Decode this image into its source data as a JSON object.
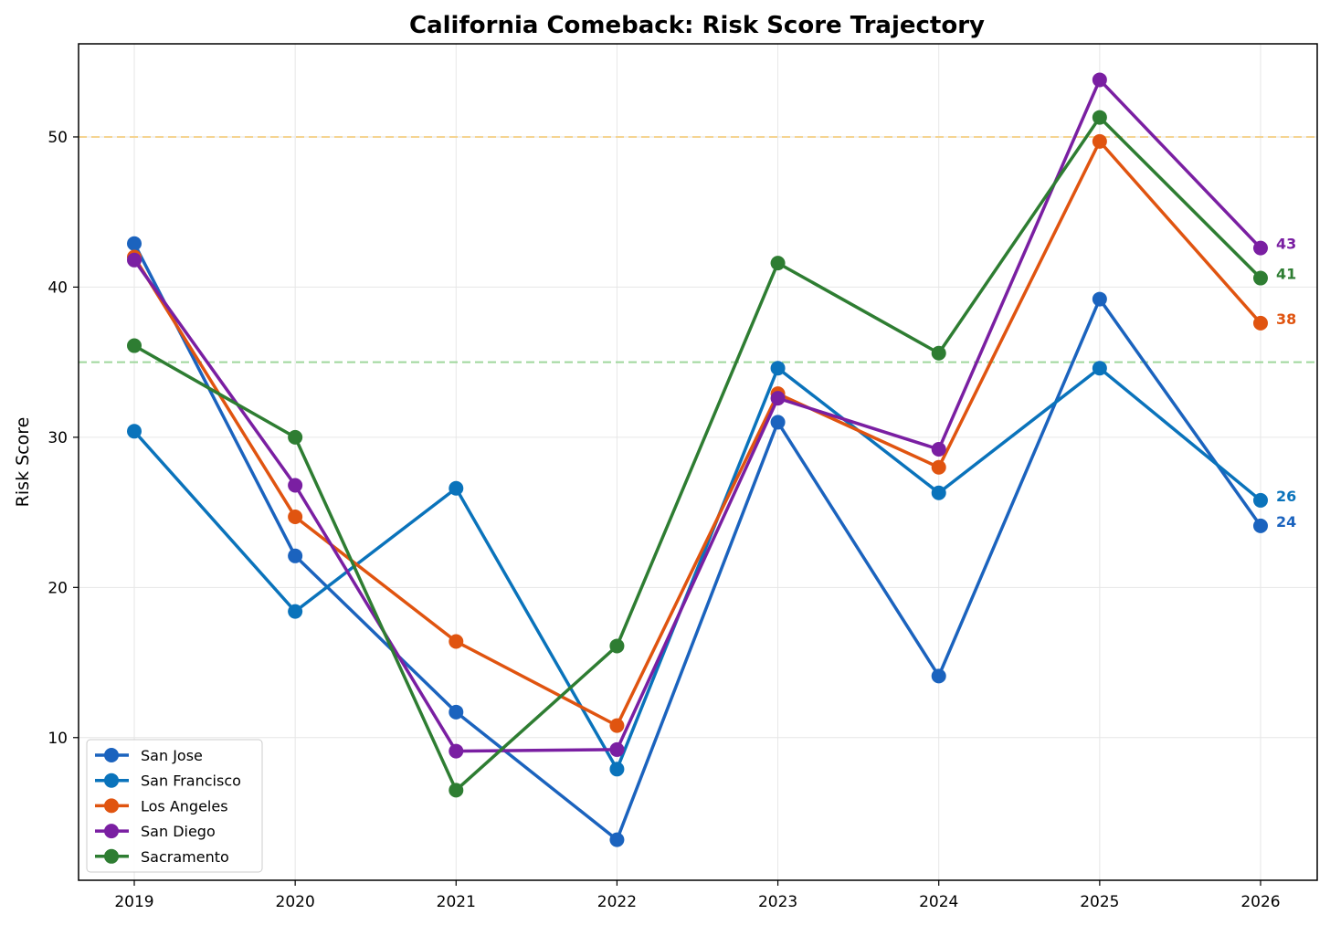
{
  "chart_data": {
    "type": "line",
    "title": "California Comeback: Risk Score Trajectory",
    "xlabel": "",
    "ylabel": "Risk Score",
    "x": [
      "2019",
      "2020",
      "2021",
      "2022",
      "2023",
      "2024",
      "2025",
      "2026"
    ],
    "ylim": [
      0.5,
      56.2
    ],
    "yticks": [
      10,
      20,
      30,
      40,
      50
    ],
    "grid": true,
    "legend_position": "lower-left",
    "reference_lines": [
      {
        "y": 50,
        "color": "#f5d491",
        "style": "dashed"
      },
      {
        "y": 35,
        "color": "#9fd69c",
        "style": "dashed"
      }
    ],
    "series": [
      {
        "name": "San Jose",
        "color": "#1b63be",
        "values": [
          42.9,
          22.1,
          11.7,
          3.2,
          31.0,
          14.1,
          39.2,
          24.1
        ],
        "end_label": "24"
      },
      {
        "name": "San Francisco",
        "color": "#0a73bb",
        "values": [
          30.4,
          18.4,
          26.6,
          7.9,
          34.6,
          26.3,
          34.6,
          25.8
        ],
        "end_label": "26"
      },
      {
        "name": "Los Angeles",
        "color": "#e05410",
        "values": [
          42.0,
          24.7,
          16.4,
          10.8,
          32.9,
          28.0,
          49.7,
          37.6
        ],
        "end_label": "38"
      },
      {
        "name": "San Diego",
        "color": "#7a1fa2",
        "values": [
          41.8,
          26.8,
          9.1,
          9.2,
          32.6,
          29.2,
          53.8,
          42.6
        ],
        "end_label": "43"
      },
      {
        "name": "Sacramento",
        "color": "#2e7d32",
        "values": [
          36.1,
          30.0,
          6.5,
          16.1,
          41.6,
          35.6,
          51.3,
          40.6
        ],
        "end_label": "41"
      }
    ]
  }
}
